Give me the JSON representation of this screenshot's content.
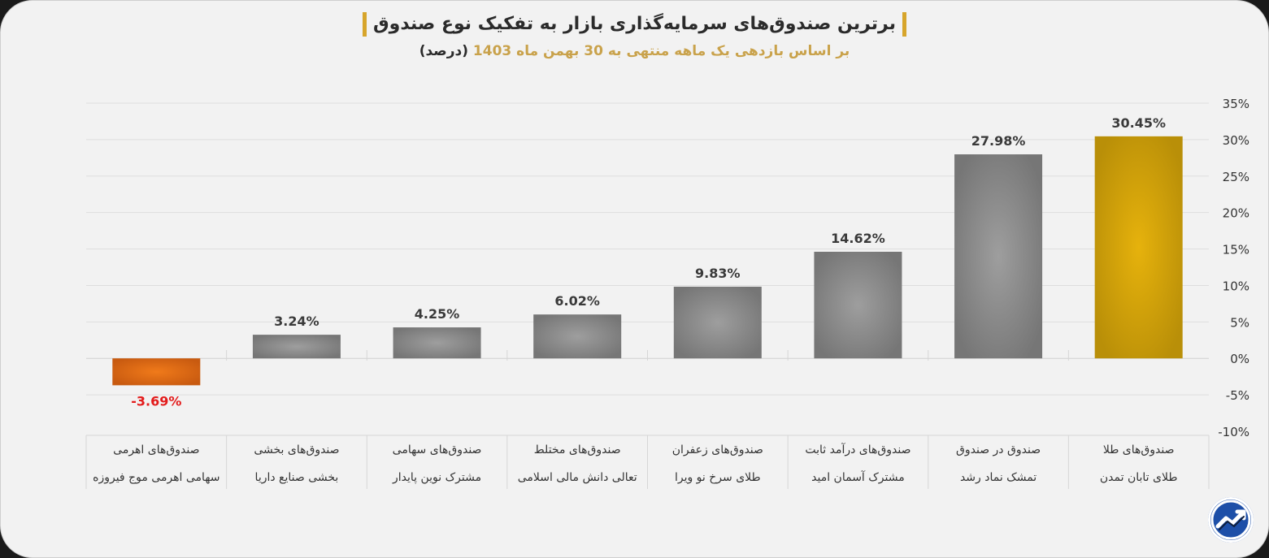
{
  "header": {
    "title": "برترین صندوق‌های سرمایه‌گذاری بازار به تفکیک نوع صندوق",
    "subtitle": "بر اساس بازدهی یک ماهه منتهی به 30 بهمن ماه 1403",
    "subtitle_unit": "(درصد)"
  },
  "colors": {
    "negative_bar": "#e8731a",
    "gray_bar": "#8a8a8a",
    "top_bar": "#d9a80c",
    "negative_label": "#e31b1b",
    "label": "#3a3a3a",
    "accent": "#d7a52b"
  },
  "chart_data": {
    "type": "bar",
    "title": "برترین صندوق‌های سرمایه‌گذاری بازار به تفکیک نوع صندوق",
    "subtitle": "بر اساس بازدهی یک ماهه منتهی به 30 بهمن ماه 1403 (درصد)",
    "ylim": [
      -10,
      35
    ],
    "yticks": [
      -10,
      -5,
      0,
      5,
      10,
      15,
      20,
      25,
      30,
      35
    ],
    "ytick_labels": [
      "-10%",
      "-5%",
      "0%",
      "5%",
      "10%",
      "15%",
      "20%",
      "25%",
      "30%",
      "35%"
    ],
    "y_axis_side": "right",
    "grid": true,
    "categories": [
      {
        "line1": "صندوق‌های اهرمی",
        "line2": "سهامی اهرمی موج فیروزه"
      },
      {
        "line1": "صندوق‌های بخشی",
        "line2": "بخشی صنایع داریا"
      },
      {
        "line1": "صندوق‌های سهامی",
        "line2": "مشترک نوین پایدار"
      },
      {
        "line1": "صندوق‌های مختلط",
        "line2": "تعالی دانش مالی اسلامی"
      },
      {
        "line1": "صندوق‌های زعفران",
        "line2": "طلای سرخ نو ویرا"
      },
      {
        "line1": "صندوق‌های درآمد ثابت",
        "line2": "مشترک آسمان امید"
      },
      {
        "line1": "صندوق در صندوق",
        "line2": "تمشک نماد رشد"
      },
      {
        "line1": "صندوق‌های طلا",
        "line2": "طلای تابان تمدن"
      }
    ],
    "values": [
      -3.69,
      3.24,
      4.25,
      6.02,
      9.83,
      14.62,
      27.98,
      30.45
    ],
    "value_labels": [
      "-3.69%",
      "3.24%",
      "4.25%",
      "6.02%",
      "9.83%",
      "14.62%",
      "27.98%",
      "30.45%"
    ]
  },
  "logo": {
    "name": "brand-logo"
  }
}
